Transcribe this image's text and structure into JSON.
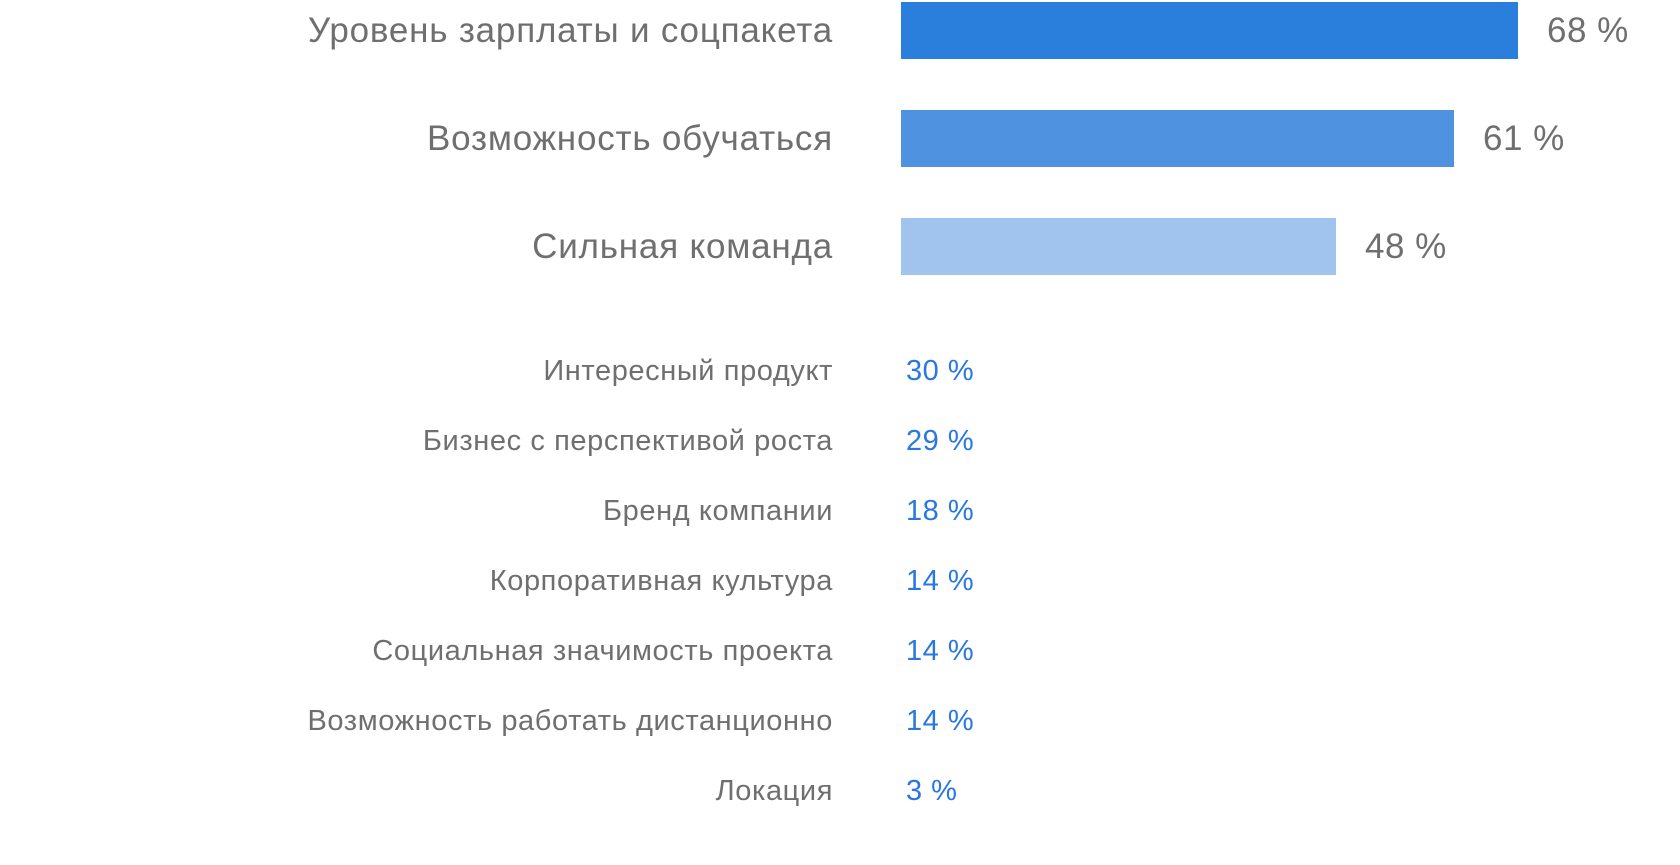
{
  "chart_data": {
    "type": "bar",
    "orientation": "horizontal",
    "title": "",
    "xlabel": "",
    "ylabel": "",
    "unit": "%",
    "xlim": [
      0,
      68
    ],
    "grid": false,
    "legend": false,
    "categories": [
      "Уровень зарплаты и соцпакета",
      "Возможность обучаться",
      "Сильная команда",
      "Интересный продукт",
      "Бизнес с перспективой роста",
      "Бренд компании",
      "Корпоративная культура",
      "Социальная значимость проекта",
      "Возможность работать дистанционно",
      "Локация"
    ],
    "values": [
      68,
      61,
      48,
      30,
      29,
      18,
      14,
      14,
      14,
      3
    ],
    "bar_rows": [
      {
        "label": "Уровень зарплаты и соцпакета",
        "value": 68,
        "display": "68 %",
        "color": "#2B7FDC"
      },
      {
        "label": "Возможность обучаться",
        "value": 61,
        "display": "61 %",
        "color": "#4F92E0"
      },
      {
        "label": "Сильная команда",
        "value": 48,
        "display": "48 %",
        "color": "#A1C4EE"
      }
    ],
    "text_rows": [
      {
        "label": "Интересный продукт",
        "value": 30,
        "display": "30 %"
      },
      {
        "label": "Бизнес с перспективой роста",
        "value": 29,
        "display": "29 %"
      },
      {
        "label": "Бренд компании",
        "value": 18,
        "display": "18 %"
      },
      {
        "label": "Корпоративная культура",
        "value": 14,
        "display": "14 %"
      },
      {
        "label": "Социальная значимость проекта",
        "value": 14,
        "display": "14 %"
      },
      {
        "label": "Возможность работать дистанционно",
        "value": 14,
        "display": "14 %"
      },
      {
        "label": "Локация",
        "value": 3,
        "display": "3 %"
      }
    ]
  },
  "colors": {
    "background": "#FFFFFF",
    "bar_68": "#2B7FDC",
    "bar_61": "#4F92E0",
    "bar_48": "#A1C4EE",
    "label_text": "#6F6F6F",
    "bar_value_text": "#6F6F6F",
    "text_value_blue": "#2878E0"
  }
}
